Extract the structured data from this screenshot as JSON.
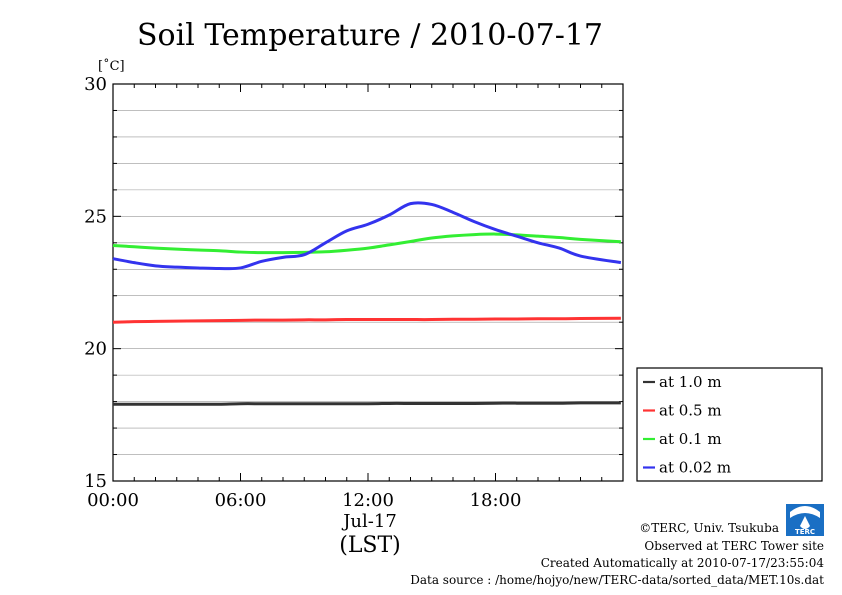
{
  "chart_data": {
    "type": "line",
    "title": "Soil Temperature / 2010-07-17",
    "ylabel": "[˚C]",
    "xlabel": "(LST)",
    "date_label": "Jul-17",
    "ylim": [
      15,
      30
    ],
    "yticks": [
      15,
      20,
      25,
      30
    ],
    "ytick_labels": [
      "15",
      "20",
      "25",
      "30"
    ],
    "xlim": [
      0,
      24
    ],
    "xticks": [
      0,
      6,
      12,
      18
    ],
    "xtick_labels": [
      "00:00",
      "06:00",
      "12:00",
      "18:00"
    ],
    "grid": true,
    "legend_position": "right-bottom",
    "x": [
      0,
      1,
      2,
      3,
      4,
      5,
      6,
      7,
      8,
      9,
      10,
      11,
      12,
      13,
      14,
      15,
      16,
      17,
      18,
      19,
      20,
      21,
      22,
      23.9
    ],
    "series": [
      {
        "name": "at 1.0 m",
        "color": "#333333",
        "values": [
          17.9,
          17.9,
          17.9,
          17.9,
          17.9,
          17.9,
          17.92,
          17.92,
          17.92,
          17.92,
          17.92,
          17.92,
          17.92,
          17.93,
          17.93,
          17.93,
          17.93,
          17.93,
          17.94,
          17.94,
          17.94,
          17.94,
          17.95,
          17.95
        ]
      },
      {
        "name": "at 0.5 m",
        "color": "#ff3333",
        "values": [
          21.0,
          21.02,
          21.03,
          21.04,
          21.05,
          21.06,
          21.07,
          21.08,
          21.08,
          21.09,
          21.09,
          21.1,
          21.1,
          21.1,
          21.1,
          21.1,
          21.11,
          21.11,
          21.12,
          21.12,
          21.13,
          21.13,
          21.14,
          21.15
        ]
      },
      {
        "name": "at 0.1 m",
        "color": "#33ee33",
        "values": [
          23.9,
          23.85,
          23.8,
          23.76,
          23.73,
          23.7,
          23.65,
          23.63,
          23.63,
          23.64,
          23.66,
          23.72,
          23.8,
          23.92,
          24.05,
          24.18,
          24.26,
          24.31,
          24.33,
          24.3,
          24.25,
          24.2,
          24.13,
          24.04
        ]
      },
      {
        "name": "at 0.02 m",
        "color": "#3333ee",
        "values": [
          23.4,
          23.25,
          23.13,
          23.08,
          23.05,
          23.03,
          23.05,
          23.3,
          23.45,
          23.55,
          24.0,
          24.45,
          24.7,
          25.05,
          25.48,
          25.45,
          25.15,
          24.8,
          24.5,
          24.25,
          24.0,
          23.8,
          23.5,
          23.25
        ]
      }
    ]
  },
  "footer": {
    "copyright": "©TERC, Univ. Tsukuba",
    "site": "Observed at TERC Tower site",
    "created": "Created Automatically at 2010-07-17/23:55:04",
    "source": "Data source : /home/hojyo/new/TERC-data/sorted_data/MET.10s.dat",
    "logo_text": "TERC"
  }
}
